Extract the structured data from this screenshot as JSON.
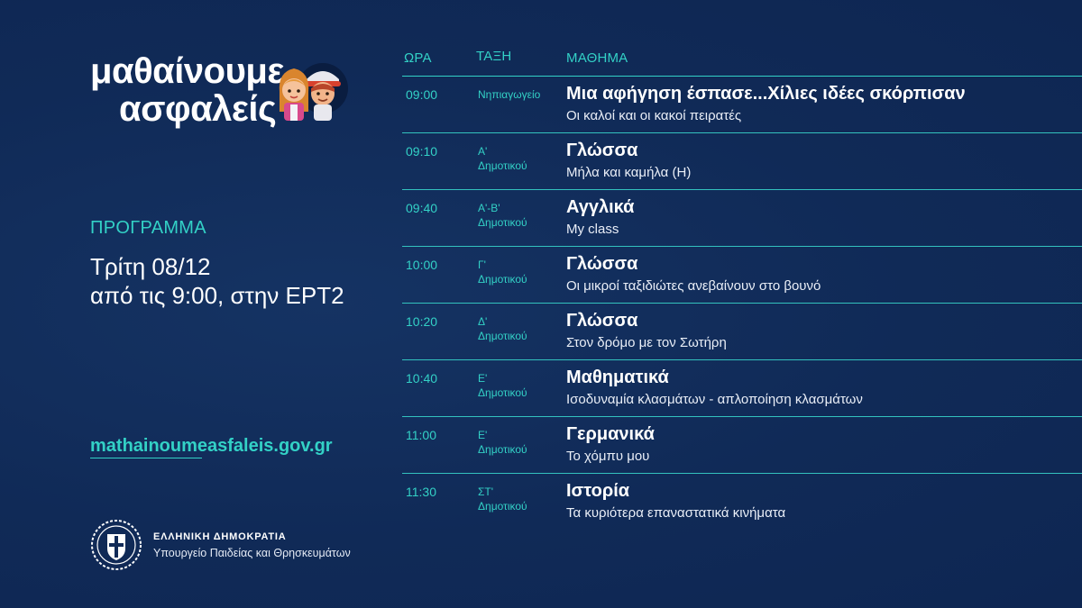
{
  "logo": {
    "line1": "μαθαίνουμε",
    "line2": "ασφαλείς"
  },
  "program": {
    "label": "ΠΡΟΓΡΑΜΜΑ",
    "date_line1": "Τρίτη 08/12",
    "date_line2": "από τις 9:00, στην ΕΡΤ2"
  },
  "website": "mathainoumeasfaleis.gov.gr",
  "footer": {
    "title": "ΕΛΛΗΝΙΚΗ ΔΗΜΟΚΡΑΤΙΑ",
    "subtitle": "Υπουργείο Παιδείας και Θρησκευμάτων"
  },
  "schedule": {
    "headers": {
      "time": "ΩΡΑ",
      "grade": "ΤΑΞΗ",
      "subject": "ΜΑΘΗΜΑ"
    },
    "rows": [
      {
        "time": "09:00",
        "grade1": "Νηπιαγωγείο",
        "grade2": "",
        "title": "Μια αφήγηση έσπασε...Χίλιες ιδέες σκόρπισαν",
        "subtitle": "Οι καλοί και οι κακοί πειρατές"
      },
      {
        "time": "09:10",
        "grade1": "Α'",
        "grade2": "Δημοτικού",
        "title": "Γλώσσα",
        "subtitle": "Μήλα και καμήλα (Η)"
      },
      {
        "time": "09:40",
        "grade1": "Α'-Β'",
        "grade2": "Δημοτικού",
        "title": "Αγγλικά",
        "subtitle": "My class"
      },
      {
        "time": "10:00",
        "grade1": "Γ'",
        "grade2": "Δημοτικού",
        "title": "Γλώσσα",
        "subtitle": "Οι μικροί ταξιδιώτες ανεβαίνουν στο βουνό"
      },
      {
        "time": "10:20",
        "grade1": "Δ'",
        "grade2": "Δημοτικού",
        "title": "Γλώσσα",
        "subtitle": "Στον δρόμο με τον Σωτήρη"
      },
      {
        "time": "10:40",
        "grade1": "Ε'",
        "grade2": "Δημοτικού",
        "title": "Μαθηματικά",
        "subtitle": "Ισοδυναμία κλασμάτων - απλοποίηση κλασμάτων"
      },
      {
        "time": "11:00",
        "grade1": "Ε'",
        "grade2": "Δημοτικού",
        "title": "Γερμανικά",
        "subtitle": "Το χόμπυ μου"
      },
      {
        "time": "11:30",
        "grade1": "ΣΤ'",
        "grade2": "Δημοτικού",
        "title": "Ιστορία",
        "subtitle": "Τα κυριότερα επαναστατικά κινήματα"
      }
    ]
  },
  "colors": {
    "background": "#102a57",
    "accent": "#33d1c6",
    "text": "#ffffff"
  },
  "icons": {
    "logo_art": "kids-illustration-icon",
    "emblem": "greek-republic-emblem-icon"
  }
}
